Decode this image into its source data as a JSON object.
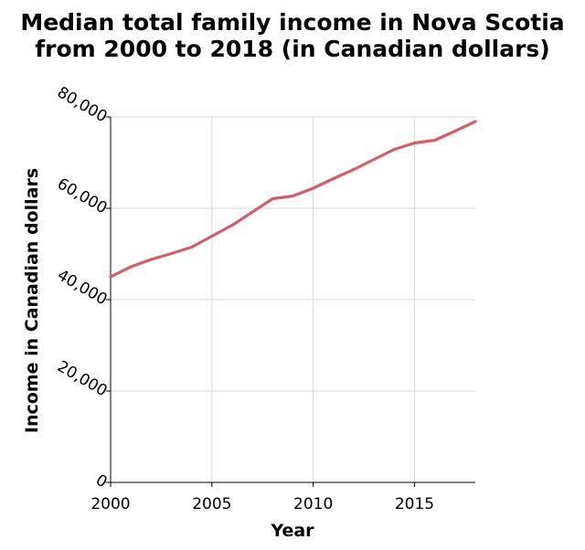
{
  "chart_data": {
    "type": "line",
    "title_lines": [
      "Median total family income in Nova Scotia",
      "from 2000 to 2018 (in Canadian dollars)"
    ],
    "xlabel": "Year",
    "ylabel": "Income in Canadian dollars",
    "xlim": [
      2000,
      2018
    ],
    "ylim": [
      0,
      80000
    ],
    "x_ticks": [
      2000,
      2005,
      2010,
      2015
    ],
    "x_tick_labels": [
      "2000",
      "2005",
      "2010",
      "2015"
    ],
    "y_ticks": [
      0,
      20000,
      40000,
      60000,
      80000
    ],
    "y_tick_labels": [
      "0",
      "20,000",
      "40,000",
      "60,000",
      "80,000"
    ],
    "grid": true,
    "series": [
      {
        "color": "#d1606b",
        "x": [
          2000,
          2001,
          2002,
          2003,
          2004,
          2005,
          2006,
          2007,
          2008,
          2009,
          2010,
          2011,
          2012,
          2013,
          2014,
          2015,
          2016,
          2017,
          2018
        ],
        "y": [
          45000,
          47200,
          48800,
          50100,
          51500,
          53900,
          56300,
          59200,
          62100,
          62700,
          64400,
          66500,
          68500,
          70700,
          72900,
          74300,
          74900,
          76900,
          79000
        ]
      }
    ]
  }
}
